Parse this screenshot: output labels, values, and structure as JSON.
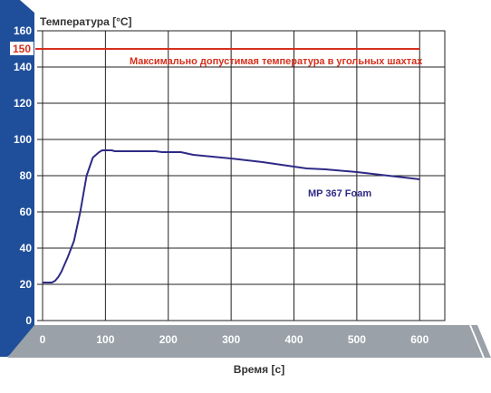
{
  "chart_data": {
    "type": "line",
    "ylabel": "Температура [°C]",
    "xlabel": "Время [с]",
    "xlim": [
      0,
      640
    ],
    "ylim": [
      0,
      160
    ],
    "x_ticks": [
      0,
      100,
      200,
      300,
      400,
      500,
      600
    ],
    "y_ticks": [
      0,
      20,
      40,
      60,
      80,
      100,
      120,
      140,
      160
    ],
    "grid": true,
    "reference_line": {
      "value": 150,
      "label": "150",
      "annotation": "Максимально допустимая температура в угольных шахтах",
      "color": "#d6301c"
    },
    "series": [
      {
        "name": "MP 367 Foam",
        "color": "#2e2a86",
        "x": [
          0,
          5,
          10,
          15,
          20,
          25,
          30,
          40,
          50,
          60,
          70,
          80,
          90,
          95,
          100,
          110,
          115,
          120,
          150,
          180,
          190,
          200,
          220,
          240,
          300,
          350,
          400,
          420,
          450,
          500,
          550,
          600
        ],
        "y": [
          21,
          21,
          21,
          21,
          22,
          24,
          27,
          35,
          44,
          60,
          80,
          90,
          93,
          94,
          94,
          94,
          93.5,
          93.5,
          93.5,
          93.5,
          93,
          93,
          93,
          91.5,
          89.5,
          87.5,
          85,
          84,
          83.5,
          82,
          80,
          78
        ]
      }
    ]
  },
  "colors": {
    "panel_blue": "#1f4f9a",
    "axis_gray": "#9aa1a8",
    "grid": "#222222",
    "reference": "#d6301c",
    "series": "#2e2a86"
  }
}
